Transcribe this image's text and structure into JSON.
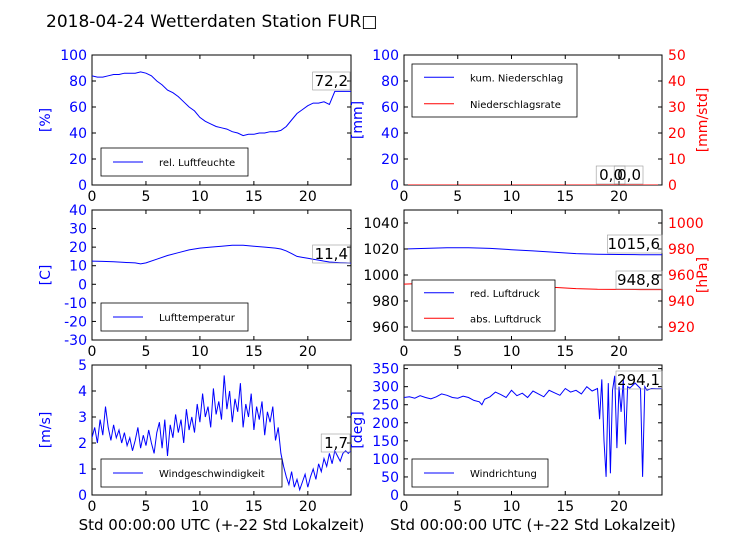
{
  "title": "2018-04-24 Wetterdaten Station FUR□",
  "chart_data": [
    {
      "id": "humidity",
      "type": "line",
      "ylabel": "[%]",
      "xlabel": "",
      "xlim": [
        0,
        24
      ],
      "ylim": [
        0,
        100
      ],
      "xticks": [
        0,
        5,
        10,
        15,
        20
      ],
      "yticks": [
        0,
        20,
        40,
        60,
        80,
        100
      ],
      "legend_position": "lower-left",
      "series": [
        {
          "name": "rel. Luftfeuchte",
          "color": "#0000ff",
          "x": [
            0,
            0.5,
            1,
            1.5,
            2,
            2.5,
            3,
            3.5,
            4,
            4.5,
            5,
            5.5,
            6,
            6.5,
            7,
            7.5,
            8,
            8.5,
            9,
            9.5,
            10,
            10.5,
            11,
            11.5,
            12,
            12.5,
            13,
            13.5,
            14,
            14.5,
            15,
            15.5,
            16,
            16.5,
            17,
            17.5,
            18,
            18.5,
            19,
            19.5,
            20,
            20.5,
            21,
            21.5,
            22,
            22.5,
            23,
            23.5,
            24
          ],
          "y": [
            84,
            83,
            83,
            84,
            85,
            85,
            86,
            86,
            86,
            87,
            86,
            84,
            80,
            77,
            73,
            71,
            68,
            64,
            60,
            57,
            52,
            49,
            47,
            45,
            44,
            43,
            41,
            40,
            38,
            39,
            39,
            40,
            40,
            41,
            41,
            42,
            45,
            50,
            55,
            58,
            61,
            63,
            63,
            64,
            62,
            72,
            72,
            72,
            72
          ]
        }
      ],
      "annotations": [
        "72,2"
      ]
    },
    {
      "id": "rain",
      "type": "line",
      "ylabel": "[mm]",
      "ylabel_right": "[mm/std]",
      "xlim": [
        0,
        24
      ],
      "ylim": [
        0,
        100
      ],
      "ylim_right": [
        0,
        50
      ],
      "xticks": [
        0,
        5,
        10,
        15,
        20
      ],
      "yticks": [
        0,
        20,
        40,
        60,
        80,
        100
      ],
      "yticks_right": [
        0,
        10,
        20,
        30,
        40,
        50
      ],
      "legend_position": "top-left",
      "series": [
        {
          "name": "kum. Niederschlag",
          "color": "#0000ff",
          "axis": "left",
          "x": [
            0,
            24
          ],
          "y": [
            0,
            0
          ]
        },
        {
          "name": "Niederschlagsrate",
          "color": "#ff0000",
          "axis": "right",
          "x": [
            0,
            24
          ],
          "y": [
            0,
            0
          ]
        }
      ],
      "annotations": [
        "0,0",
        "0,0"
      ]
    },
    {
      "id": "temperature",
      "type": "line",
      "ylabel": "[C]",
      "xlim": [
        0,
        24
      ],
      "ylim": [
        -30,
        40
      ],
      "xticks": [
        0,
        5,
        10,
        15,
        20
      ],
      "yticks": [
        -30,
        -20,
        -10,
        0,
        10,
        20,
        30,
        40
      ],
      "legend_position": "lower-left",
      "series": [
        {
          "name": "Lufttemperatur",
          "color": "#0000ff",
          "x": [
            0,
            1,
            2,
            3,
            4,
            4.5,
            5,
            6,
            7,
            8,
            9,
            10,
            11,
            12,
            13,
            14,
            15,
            16,
            17,
            17.5,
            18,
            18.5,
            19,
            19.5,
            20,
            20.5,
            21,
            21.5,
            22,
            22.5,
            23,
            23.5,
            24
          ],
          "y": [
            12.5,
            12.3,
            12.1,
            11.8,
            11.5,
            11,
            11.5,
            13.5,
            15.5,
            17,
            18.5,
            19.5,
            20,
            20.5,
            21,
            21,
            20.5,
            20,
            19.5,
            19,
            18,
            16.5,
            15,
            14.5,
            14,
            13.5,
            13,
            12.5,
            12,
            11.8,
            11.6,
            11.5,
            11.4
          ]
        }
      ],
      "annotations": [
        "11,4"
      ]
    },
    {
      "id": "pressure",
      "type": "line",
      "ylabel_right": "[hPa]",
      "xlim": [
        0,
        24
      ],
      "ylim": [
        950,
        1050
      ],
      "ylim_right": [
        910,
        1010
      ],
      "xticks": [
        0,
        5,
        10,
        15,
        20
      ],
      "yticks": [
        960,
        980,
        1000,
        1020,
        1040
      ],
      "yticks_right": [
        920,
        940,
        960,
        980,
        1000
      ],
      "legend_position": "lower-left",
      "series": [
        {
          "name": "red. Luftdruck",
          "color": "#0000ff",
          "axis": "left",
          "x": [
            0,
            2,
            4,
            6,
            8,
            10,
            12,
            14,
            16,
            18,
            20,
            22,
            24
          ],
          "y": [
            1020,
            1020.5,
            1021,
            1021,
            1020.5,
            1019.5,
            1018.5,
            1017.5,
            1016.5,
            1016,
            1015.8,
            1015.6,
            1015.6
          ]
        },
        {
          "name": "abs. Luftdruck",
          "color": "#ff0000",
          "axis": "right",
          "x": [
            0,
            2,
            4,
            6,
            8,
            10,
            12,
            14,
            16,
            18,
            20,
            22,
            24
          ],
          "y": [
            953,
            953.5,
            954,
            954,
            953.5,
            952.5,
            951.5,
            950.5,
            949.5,
            949,
            948.9,
            948.8,
            948.8
          ]
        }
      ],
      "annotations": [
        "1015,6",
        "948,8"
      ]
    },
    {
      "id": "windspeed",
      "type": "line",
      "ylabel": "[m/s]",
      "xlabel": "Std 00:00:00 UTC (+-22 Std Lokalzeit)",
      "xlim": [
        0,
        24
      ],
      "ylim": [
        0,
        5
      ],
      "xticks": [
        0,
        5,
        10,
        15,
        20
      ],
      "yticks": [
        0,
        1,
        2,
        3,
        4,
        5
      ],
      "legend_position": "lower-left",
      "series": [
        {
          "name": "Windgeschwindigkeit",
          "color": "#0000ff",
          "x": [
            0,
            0.25,
            0.5,
            0.75,
            1,
            1.25,
            1.5,
            1.75,
            2,
            2.25,
            2.5,
            2.75,
            3,
            3.25,
            3.5,
            3.75,
            4,
            4.25,
            4.5,
            4.75,
            5,
            5.25,
            5.5,
            5.75,
            6,
            6.25,
            6.5,
            6.75,
            7,
            7.25,
            7.5,
            7.75,
            8,
            8.25,
            8.5,
            8.75,
            9,
            9.25,
            9.5,
            9.75,
            10,
            10.25,
            10.5,
            10.75,
            11,
            11.25,
            11.5,
            11.75,
            12,
            12.25,
            12.5,
            12.75,
            13,
            13.25,
            13.5,
            13.75,
            14,
            14.25,
            14.5,
            14.75,
            15,
            15.25,
            15.5,
            15.75,
            16,
            16.25,
            16.5,
            16.75,
            17,
            17.25,
            17.5,
            17.75,
            18,
            18.25,
            18.5,
            18.75,
            19,
            19.25,
            19.5,
            19.75,
            20,
            20.25,
            20.5,
            20.75,
            21,
            21.25,
            21.5,
            21.75,
            22,
            22.25,
            22.5,
            22.75,
            23,
            23.25,
            23.5,
            23.75,
            24
          ],
          "y": [
            2.2,
            2.6,
            2.0,
            2.9,
            2.3,
            3.4,
            2.6,
            2.1,
            2.7,
            2.2,
            2.5,
            2.0,
            2.4,
            1.9,
            2.2,
            1.7,
            2.1,
            2.6,
            1.8,
            2.3,
            1.9,
            2.5,
            2.0,
            1.6,
            2.4,
            2.8,
            1.8,
            2.9,
            1.5,
            2.7,
            2.2,
            3.1,
            2.4,
            2.9,
            2.0,
            3.3,
            2.5,
            3.0,
            2.4,
            3.5,
            2.8,
            3.9,
            3.0,
            3.4,
            2.6,
            4.1,
            3.1,
            3.6,
            2.9,
            4.6,
            3.3,
            4.0,
            2.8,
            3.7,
            3.2,
            4.3,
            2.6,
            3.5,
            3.0,
            3.9,
            2.5,
            3.4,
            2.9,
            3.6,
            2.3,
            3.2,
            2.8,
            3.4,
            2.1,
            2.6,
            1.6,
            1.1,
            0.7,
            0.4,
            0.9,
            0.3,
            0.6,
            0.2,
            0.5,
            0.8,
            0.3,
            0.7,
            1.0,
            0.6,
            1.2,
            0.9,
            1.4,
            1.1,
            1.6,
            1.2,
            1.7,
            1.5,
            1.3,
            1.6,
            1.7,
            1.6,
            1.7
          ]
        }
      ],
      "annotations": [
        "1,7"
      ]
    },
    {
      "id": "winddir",
      "type": "line",
      "ylabel": "[deg]",
      "xlabel": "Std 00:00:00 UTC (+-22 Std Lokalzeit)",
      "xlim": [
        0,
        24
      ],
      "ylim": [
        0,
        360
      ],
      "xticks": [
        0,
        5,
        10,
        15,
        20
      ],
      "yticks": [
        0,
        50,
        100,
        150,
        200,
        250,
        300,
        350
      ],
      "legend_position": "lower-left",
      "series": [
        {
          "name": "Windrichtung",
          "color": "#0000ff",
          "x": [
            0,
            0.5,
            1,
            1.5,
            2,
            2.5,
            3,
            3.5,
            4,
            4.5,
            5,
            5.5,
            6,
            6.5,
            7,
            7.25,
            7.5,
            8,
            8.5,
            9,
            9.5,
            10,
            10.5,
            11,
            11.5,
            12,
            12.5,
            13,
            13.5,
            14,
            14.5,
            15,
            15.5,
            16,
            16.5,
            17,
            17.5,
            18,
            18.2,
            18.4,
            18.6,
            18.8,
            19,
            19.2,
            19.4,
            19.6,
            19.8,
            20,
            20.2,
            20.4,
            20.6,
            20.8,
            21,
            21.5,
            22,
            22.2,
            22.4,
            22.6,
            23,
            23.5,
            24
          ],
          "y": [
            270,
            272,
            268,
            275,
            270,
            266,
            272,
            280,
            276,
            270,
            268,
            274,
            270,
            262,
            258,
            250,
            265,
            272,
            285,
            278,
            270,
            290,
            275,
            282,
            270,
            288,
            280,
            272,
            290,
            283,
            276,
            295,
            285,
            290,
            280,
            300,
            288,
            295,
            210,
            320,
            150,
            50,
            310,
            60,
            290,
            330,
            130,
            300,
            230,
            320,
            140,
            300,
            296,
            310,
            295,
            50,
            300,
            290,
            295,
            294,
            294
          ]
        }
      ],
      "annotations": [
        "294,1"
      ]
    }
  ]
}
